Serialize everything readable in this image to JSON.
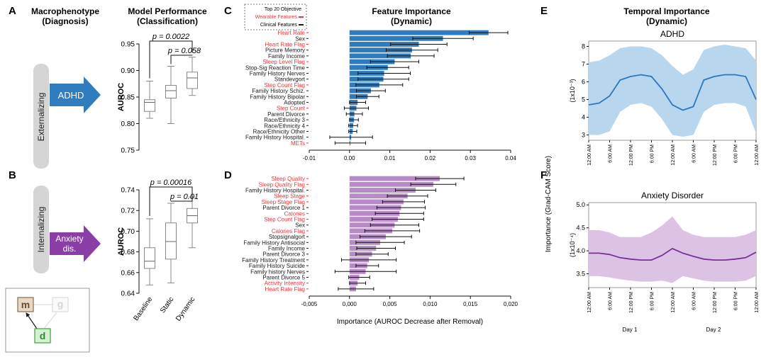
{
  "panels": {
    "A": {
      "letter": "A",
      "title1": "Macrophenotype",
      "title2": "(Diagnosis)",
      "side_label": "Externalizing",
      "arrow_label": "ADHD",
      "arrow_color": "#2f7dbf"
    },
    "B": {
      "letter": "B",
      "side_label": "Internalizing",
      "arrow_label1": "Anxiety",
      "arrow_label2": "dis.",
      "arrow_color": "#8a3ea6"
    },
    "C": {
      "letter": "C"
    },
    "D": {
      "letter": "D"
    },
    "E": {
      "letter": "E"
    },
    "F": {
      "letter": "F"
    }
  },
  "model_perf": {
    "title1": "Model Performance",
    "title2": "(Classification)"
  },
  "icon": {
    "m": "m",
    "g": "g",
    "d": "d"
  },
  "feature_importance": {
    "title1": "Feature Importance",
    "title2": "(Dynamic)",
    "legend_title": "Top 20 Objective",
    "legend_wearable": "Wearable Features",
    "legend_clinical": "Clinical Features",
    "xlabel": "Importance (AUROC Decrease after Removal)"
  },
  "temporal": {
    "title1": "Temporal Importance",
    "title2": "(Dynamic)",
    "ylabel": "Importance (Grad-CAM Score)",
    "day1": "Day 1",
    "day2": "Day 2"
  },
  "colors": {
    "wearable_text": "#e8383d",
    "clinical_text": "#1a1a1a",
    "adhd_bar": "#2e7cbf",
    "anx_bar": "#b88ac7",
    "adhd_line": "#2a78bd",
    "adhd_band": "#b8d6ee",
    "anx_line": "#7a2f9a",
    "anx_band": "#dcc3e6"
  },
  "chart_data": [
    {
      "id": "A-boxplot",
      "type": "box",
      "ylabel": "AUROC",
      "categories": [
        "Baseline",
        "Static",
        "Dynamic"
      ],
      "ylim": [
        0.75,
        0.95
      ],
      "yticks": [
        "0.75",
        "0.80",
        "0.85",
        "0.90",
        "0.95"
      ],
      "boxes": [
        {
          "min": 0.81,
          "q1": 0.823,
          "median": 0.84,
          "q3": 0.845,
          "max": 0.88
        },
        {
          "min": 0.8,
          "q1": 0.848,
          "median": 0.862,
          "q3": 0.872,
          "max": 0.908
        },
        {
          "min": 0.853,
          "q1": 0.866,
          "median": 0.886,
          "q3": 0.897,
          "max": 0.925
        }
      ],
      "annotations": [
        {
          "text": "p = 0.0022",
          "from": 0,
          "to": 2
        },
        {
          "text": "p = 0.058",
          "from": 1,
          "to": 2
        }
      ]
    },
    {
      "id": "B-boxplot",
      "type": "box",
      "ylabel": "AUROC",
      "categories": [
        "Baseline",
        "Static",
        "Dynamic"
      ],
      "ylim": [
        0.64,
        0.74
      ],
      "yticks": [
        "0.64",
        "0.66",
        "0.68",
        "0.70",
        "0.72",
        "0.74"
      ],
      "boxes": [
        {
          "min": 0.648,
          "q1": 0.664,
          "median": 0.671,
          "q3": 0.684,
          "max": 0.712
        },
        {
          "min": 0.65,
          "q1": 0.673,
          "median": 0.69,
          "q3": 0.708,
          "max": 0.727
        },
        {
          "min": 0.684,
          "q1": 0.708,
          "median": 0.715,
          "q3": 0.722,
          "max": 0.733
        }
      ],
      "annotations": [
        {
          "text": "p = 0.00016",
          "from": 0,
          "to": 2
        },
        {
          "text": "p = 0.01",
          "from": 1,
          "to": 2
        }
      ]
    },
    {
      "id": "C-bar",
      "type": "bar",
      "orientation": "horizontal",
      "xlim": [
        -0.01,
        0.04
      ],
      "xticks": [
        "-0.01",
        "0.00",
        "0.01",
        "0.02",
        "0.03",
        "0.04"
      ],
      "features": [
        {
          "label": "Heart Rate",
          "kind": "wearable",
          "value": 0.0345,
          "err": 0.0048
        },
        {
          "label": "Sex",
          "kind": "clinical",
          "value": 0.0232,
          "err": 0.0075
        },
        {
          "label": "Heart Rate Flag",
          "kind": "wearable",
          "value": 0.0172,
          "err": 0.007
        },
        {
          "label": "Picture Memory",
          "kind": "clinical",
          "value": 0.0155,
          "err": 0.0064
        },
        {
          "label": "Family Income",
          "kind": "clinical",
          "value": 0.0152,
          "err": 0.0058
        },
        {
          "label": "Sleep Level Flag",
          "kind": "wearable",
          "value": 0.0112,
          "err": 0.006
        },
        {
          "label": "Stop-Sig Reaction Time",
          "kind": "clinical",
          "value": 0.0095,
          "err": 0.0052
        },
        {
          "label": "Family History Nerves",
          "kind": "clinical",
          "value": 0.0086,
          "err": 0.0065
        },
        {
          "label": "Standevgort",
          "kind": "clinical",
          "value": 0.0084,
          "err": 0.0063
        },
        {
          "label": "Step Count Flag",
          "kind": "wearable",
          "value": 0.0074,
          "err": 0.0058
        },
        {
          "label": "Family History Schiz.",
          "kind": "clinical",
          "value": 0.0053,
          "err": 0.0036
        },
        {
          "label": "Family History Bipolar",
          "kind": "clinical",
          "value": 0.0045,
          "err": 0.0028
        },
        {
          "label": "Adopted",
          "kind": "clinical",
          "value": 0.002,
          "err": 0.002
        },
        {
          "label": "Step Count",
          "kind": "wearable",
          "value": 0.0017,
          "err": 0.003
        },
        {
          "label": "Parent Divorce",
          "kind": "clinical",
          "value": 0.0012,
          "err": 0.002
        },
        {
          "label": "Race/Ethnicity 3",
          "kind": "clinical",
          "value": 0.0011,
          "err": 0.0011
        },
        {
          "label": "Race/Ethnicity 4",
          "kind": "clinical",
          "value": 0.0009,
          "err": 0.0011
        },
        {
          "label": "Race/Ethnicity Other",
          "kind": "clinical",
          "value": 0.0008,
          "err": 0.001
        },
        {
          "label": "Family History Hospital.",
          "kind": "clinical",
          "value": 0.0004,
          "err": 0.0053
        },
        {
          "label": "METs",
          "kind": "wearable",
          "value": 0.0002,
          "err": 0.0038
        }
      ]
    },
    {
      "id": "D-bar",
      "type": "bar",
      "orientation": "horizontal",
      "xlim": [
        -0.005,
        0.02
      ],
      "xticks": [
        "-0,005",
        "0,000",
        "0,005",
        "0,010",
        "0,015",
        "0,020"
      ],
      "features": [
        {
          "label": "Sleep Quality",
          "kind": "wearable",
          "value": 0.0112,
          "err": 0.003
        },
        {
          "label": "Sleep Quality Flag",
          "kind": "wearable",
          "value": 0.0104,
          "err": 0.0028
        },
        {
          "label": "Family History Hospital.",
          "kind": "clinical",
          "value": 0.0082,
          "err": 0.0025
        },
        {
          "label": "Sleep Stage",
          "kind": "wearable",
          "value": 0.0072,
          "err": 0.0025
        },
        {
          "label": "Sleep Stage Flag",
          "kind": "wearable",
          "value": 0.0067,
          "err": 0.0026
        },
        {
          "label": "Parent Divorce 1",
          "kind": "clinical",
          "value": 0.0064,
          "err": 0.003
        },
        {
          "label": "Calories",
          "kind": "wearable",
          "value": 0.0062,
          "err": 0.003
        },
        {
          "label": "Step Count Flag",
          "kind": "wearable",
          "value": 0.006,
          "err": 0.0032
        },
        {
          "label": "Sex",
          "kind": "clinical",
          "value": 0.0056,
          "err": 0.003
        },
        {
          "label": "Calories Flag",
          "kind": "wearable",
          "value": 0.0053,
          "err": 0.0034
        },
        {
          "label": "Stopsignalgort",
          "kind": "clinical",
          "value": 0.0045,
          "err": 0.0032
        },
        {
          "label": "Family History Antisocial",
          "kind": "clinical",
          "value": 0.0038,
          "err": 0.003
        },
        {
          "label": "Family Income",
          "kind": "clinical",
          "value": 0.0033,
          "err": 0.0024
        },
        {
          "label": "Parent Divorce 3",
          "kind": "clinical",
          "value": 0.0028,
          "err": 0.002
        },
        {
          "label": "Family History Treatment",
          "kind": "clinical",
          "value": 0.0024,
          "err": 0.0034
        },
        {
          "label": "Family History Suicide",
          "kind": "clinical",
          "value": 0.0022,
          "err": 0.0014
        },
        {
          "label": "Family history Nerves",
          "kind": "clinical",
          "value": 0.002,
          "err": 0.0038
        },
        {
          "label": "Parent Divorce 5",
          "kind": "clinical",
          "value": 0.0012,
          "err": 0.0013
        },
        {
          "label": "Activity Intensity",
          "kind": "wearable",
          "value": 0.001,
          "err": 0.001
        },
        {
          "label": "Heart Rate Flag",
          "kind": "wearable",
          "value": 0.0008,
          "err": 0.0022
        }
      ]
    },
    {
      "id": "E-line",
      "type": "line",
      "title": "ADHD",
      "unit": "(1x10⁻³)",
      "ylim": [
        2.7,
        8.3
      ],
      "yticks": [
        "3",
        "4",
        "5",
        "6",
        "7",
        "8"
      ],
      "xticks": [
        "12:00 AM",
        "6:00 AM",
        "12:00 PM",
        "6:00 PM",
        "12:00 AM",
        "6:00 AM",
        "12:00 PM",
        "6:00 PM",
        "12:00 AM"
      ],
      "x_hours": [
        0,
        3,
        6,
        9,
        12,
        15,
        18,
        21,
        24,
        27,
        30,
        33,
        36,
        39,
        42,
        45,
        48
      ],
      "mean": [
        4.7,
        4.8,
        5.2,
        6.1,
        6.3,
        6.4,
        6.3,
        5.6,
        4.7,
        4.4,
        4.6,
        6.1,
        6.3,
        6.4,
        6.4,
        6.3,
        5.0
      ],
      "upper": [
        7.1,
        7.2,
        7.5,
        7.9,
        8.0,
        8.0,
        7.9,
        7.5,
        6.9,
        6.4,
        6.7,
        7.8,
        8.0,
        8.1,
        8.0,
        7.9,
        7.2
      ],
      "lower": [
        3.0,
        3.0,
        3.2,
        4.3,
        4.7,
        4.8,
        4.6,
        3.9,
        3.0,
        2.9,
        3.0,
        4.3,
        4.7,
        4.8,
        4.8,
        4.6,
        3.1
      ]
    },
    {
      "id": "F-line",
      "type": "line",
      "title": "Anxiety Disorder",
      "unit": "(1x10⁻⁴)",
      "ylim": [
        3.2,
        5.05
      ],
      "yticks": [
        "3.5",
        "4.0",
        "4.5",
        "5.0"
      ],
      "xticks": [
        "12:00 AM",
        "6:00 AM",
        "12:00 PM",
        "6:00 PM",
        "12:00 AM",
        "6:00 AM",
        "12:00 PM",
        "6:00 PM",
        "12:00 AM"
      ],
      "x_hours": [
        0,
        3,
        6,
        9,
        12,
        15,
        18,
        21,
        24,
        27,
        30,
        33,
        36,
        39,
        42,
        45,
        48
      ],
      "mean": [
        3.95,
        3.95,
        3.92,
        3.85,
        3.82,
        3.8,
        3.8,
        3.9,
        4.05,
        3.95,
        3.88,
        3.82,
        3.8,
        3.8,
        3.82,
        3.85,
        3.97
      ],
      "upper": [
        4.45,
        4.45,
        4.4,
        4.3,
        4.3,
        4.3,
        4.4,
        4.55,
        4.75,
        4.45,
        4.35,
        4.3,
        4.3,
        4.3,
        4.3,
        4.35,
        4.45
      ],
      "lower": [
        3.45,
        3.45,
        3.42,
        3.38,
        3.35,
        3.33,
        3.33,
        3.35,
        3.3,
        3.45,
        3.4,
        3.35,
        3.33,
        3.33,
        3.33,
        3.35,
        3.45
      ]
    }
  ]
}
